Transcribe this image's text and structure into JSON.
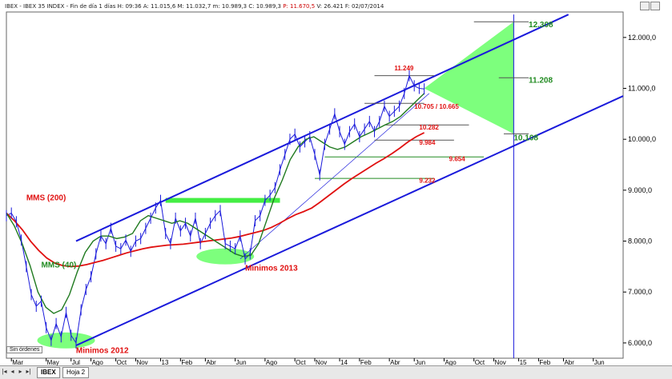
{
  "window": {
    "title_prefix": "IBEX - IBEX 35 INDEX - Fin de día 1 días H: 09:36  A: 11.015,6  M: 11.032,7  m: 10.989,3  C: 10.989,3 ",
    "title_hi": "P: 11.670,5",
    "title_suffix": "  V: 26.421  F: 02/07/2014"
  },
  "status": {
    "label": "Sin órdenes"
  },
  "tabs": [
    {
      "label": "IBEX"
    },
    {
      "label": "Hoja 2"
    }
  ],
  "colors": {
    "price": "#1a1adb",
    "mms200": "#e01010",
    "mms40": "#1f7a1f",
    "channel": "#1a1adb",
    "zone": "#7dff7d",
    "target": "#228b22",
    "red_text": "#e01010"
  },
  "chart_data": {
    "type": "line",
    "title": "",
    "ylabel": "",
    "xlabel": "",
    "grid": false,
    "ylim": [
      5700,
      12500
    ],
    "y_ticks": [
      6000,
      7000,
      8000,
      9000,
      10000,
      11000,
      12000
    ],
    "y_tick_labels": [
      "6.000,0",
      "7.000,0",
      "8.000,0",
      "9.000,0",
      "10.000,0",
      "11.000,0",
      "12.000,0"
    ],
    "x_range": [
      0,
      124
    ],
    "x_ticks": [
      {
        "x": 1,
        "label": "Mar"
      },
      {
        "x": 8,
        "label": "May"
      },
      {
        "x": 13,
        "label": "Jul"
      },
      {
        "x": 17,
        "label": "Ago"
      },
      {
        "x": 22,
        "label": "Oct"
      },
      {
        "x": 26,
        "label": "Nov"
      },
      {
        "x": 31,
        "label": "13"
      },
      {
        "x": 35,
        "label": "Feb"
      },
      {
        "x": 40,
        "label": "Abr"
      },
      {
        "x": 46,
        "label": "Jun"
      },
      {
        "x": 52,
        "label": "Ago"
      },
      {
        "x": 58,
        "label": "Oct"
      },
      {
        "x": 62,
        "label": "Nov"
      },
      {
        "x": 67,
        "label": "14"
      },
      {
        "x": 71,
        "label": "Feb"
      },
      {
        "x": 77,
        "label": "Abr"
      },
      {
        "x": 82,
        "label": "Jun"
      },
      {
        "x": 88,
        "label": "Ago"
      },
      {
        "x": 94,
        "label": "Oct"
      },
      {
        "x": 98,
        "label": "Nov"
      },
      {
        "x": 103,
        "label": "15"
      },
      {
        "x": 107,
        "label": "Feb"
      },
      {
        "x": 112,
        "label": "Abr"
      },
      {
        "x": 118,
        "label": "Jun"
      }
    ],
    "series": [
      {
        "name": "",
        "values": [
          8500,
          8550,
          8380,
          8020,
          7500,
          6950,
          6720,
          6820,
          6300,
          6050,
          6380,
          6120,
          6600,
          6150,
          6000,
          6650,
          7050,
          7300,
          7750,
          8100,
          7950,
          8250,
          7900,
          7850,
          8020,
          7800,
          8000,
          8050,
          8250,
          8450,
          8650,
          8800,
          8150,
          7950,
          8450,
          8200,
          8350,
          8100,
          8450,
          7950,
          8150,
          8350,
          8500,
          8600,
          7950,
          7900,
          7850,
          8100,
          7650,
          7750,
          8400,
          8500,
          8800,
          8900,
          9050,
          9400,
          9700,
          10000,
          10100,
          9850,
          9950,
          10050,
          9700,
          9300,
          9900,
          10200,
          10500,
          10150,
          9900,
          10150,
          10300,
          10050,
          10200,
          10350,
          10150,
          10350,
          10650,
          10450,
          10550,
          10650,
          10900,
          11249,
          11050,
          11000,
          10989
        ]
      },
      {
        "name": "MMS (200)",
        "values": [
          8550,
          8400,
          8220,
          8000,
          7820,
          7670,
          7570,
          7520,
          7500,
          7510,
          7540,
          7580,
          7620,
          7670,
          7720,
          7770,
          7810,
          7850,
          7880,
          7900,
          7920,
          7930,
          7940,
          7960,
          7980,
          8000,
          8020,
          8040,
          8060,
          8090,
          8130,
          8170,
          8210,
          8270,
          8350,
          8440,
          8520,
          8580,
          8650,
          8760,
          8880,
          9000,
          9120,
          9230,
          9330,
          9430,
          9530,
          9620,
          9720,
          9830,
          9950,
          10050,
          10130
        ]
      },
      {
        "name": "MMS (40)",
        "values": [
          8550,
          8300,
          7950,
          7520,
          7000,
          6700,
          6580,
          6650,
          6950,
          7400,
          7780,
          8000,
          8100,
          8100,
          8050,
          8080,
          8150,
          8400,
          8500,
          8450,
          8400,
          8350,
          8400,
          8350,
          8250,
          8150,
          8050,
          7950,
          7850,
          7750,
          7700,
          7720,
          7950,
          8400,
          8850,
          9200,
          9600,
          9850,
          10000,
          10050,
          9950,
          9850,
          9800,
          9850,
          9950,
          10050,
          10120,
          10200,
          10280,
          10350,
          10450,
          10600,
          10750,
          10900
        ]
      }
    ],
    "annotations": [
      {
        "text": "MMS (200)",
        "x": 4,
        "y": 8800,
        "color": "red"
      },
      {
        "text": "MMS (40)",
        "x": 7,
        "y": 7480,
        "color": "green"
      },
      {
        "text": "Minimos 2012",
        "x": 14,
        "y": 5800,
        "color": "red"
      },
      {
        "text": "Minimos 2013",
        "x": 48,
        "y": 7420,
        "color": "red"
      },
      {
        "text": "11.249",
        "x": 78,
        "y": 11350,
        "color": "red"
      },
      {
        "text": "10.705 / 10.665",
        "x": 82,
        "y": 10600,
        "color": "red"
      },
      {
        "text": "10.282",
        "x": 83,
        "y": 10190,
        "color": "red"
      },
      {
        "text": "9.984",
        "x": 83,
        "y": 9890,
        "color": "red"
      },
      {
        "text": "9.654",
        "x": 89,
        "y": 9570,
        "color": "red"
      },
      {
        "text": "9.232",
        "x": 83,
        "y": 9150,
        "color": "red"
      },
      {
        "text": "12.308",
        "x": 105,
        "y": 12200,
        "color": "green"
      },
      {
        "text": "11.208",
        "x": 105,
        "y": 11110,
        "color": "green"
      },
      {
        "text": "10.108",
        "x": 102,
        "y": 9980,
        "color": "green"
      }
    ],
    "levels": [
      {
        "value": 11249,
        "x0": 74,
        "x1": 86
      },
      {
        "value": 10705,
        "x0": 72,
        "x1": 84
      },
      {
        "value": 10282,
        "x0": 76,
        "x1": 93
      },
      {
        "value": 9984,
        "x0": 74,
        "x1": 90
      },
      {
        "value": 9654,
        "x0": 64,
        "x1": 96
      },
      {
        "value": 9232,
        "x0": 62,
        "x1": 86
      },
      {
        "value": 12308,
        "x0": 94,
        "x1": 105
      },
      {
        "value": 11208,
        "x0": 99,
        "x1": 105
      },
      {
        "value": 10108,
        "x0": 100,
        "x1": 105
      }
    ],
    "resistance_band": {
      "value": 8800,
      "x0": 32,
      "x1": 55
    },
    "channel": {
      "upper": [
        [
          14,
          8000
        ],
        [
          113,
          12450
        ]
      ],
      "lower": [
        [
          14,
          5950
        ],
        [
          124,
          10850
        ]
      ],
      "inner": [
        [
          47,
          7650
        ],
        [
          85,
          10900
        ]
      ]
    },
    "target_projection": {
      "x": 102,
      "top": 12308,
      "mid": 11208,
      "bottom": 10108,
      "apex_x": 84,
      "apex_y": 11000
    },
    "minima_zones": [
      {
        "x": 12,
        "y": 6050
      },
      {
        "x": 44,
        "y": 7700
      }
    ]
  }
}
